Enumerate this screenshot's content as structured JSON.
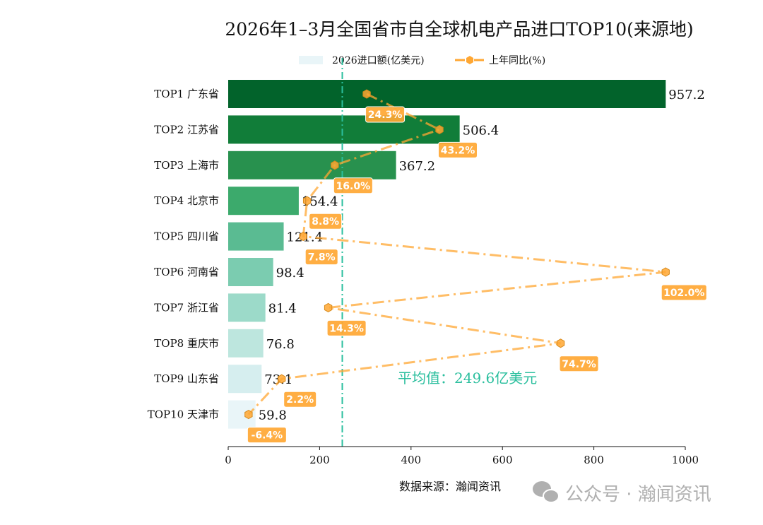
{
  "chart_data": {
    "type": "bar",
    "orientation": "horizontal",
    "title": "2026年1–3月全国省市自全球机电产品进口TOP10(来源地)",
    "categories": [
      "TOP1 广东省",
      "TOP2 江苏省",
      "TOP3 上海市",
      "TOP4 北京市",
      "TOP5 四川省",
      "TOP6 河南省",
      "TOP7 浙江省",
      "TOP8 重庆市",
      "TOP9 山东省",
      "TOP10 天津市"
    ],
    "series": [
      {
        "name": "2026进口额(亿美元)",
        "type": "bar",
        "values": [
          957.2,
          506.4,
          367.2,
          154.4,
          121.4,
          98.4,
          81.4,
          76.8,
          73.1,
          59.8
        ],
        "value_labels": [
          "957.2",
          "506.4",
          "367.2",
          "154.4",
          "121.4",
          "98.4",
          "81.4",
          "76.8",
          "73.1",
          "59.8"
        ],
        "colors": [
          "#02632b",
          "#117d39",
          "#28914e",
          "#3caa6c",
          "#5abb92",
          "#7bccb0",
          "#9cdac9",
          "#bde6de",
          "#d6eeef",
          "#e9f5f8"
        ]
      },
      {
        "name": "上年同比(%)",
        "type": "line",
        "values": [
          24.3,
          43.2,
          16.0,
          8.8,
          7.8,
          102.0,
          14.3,
          74.7,
          2.2,
          -6.4
        ],
        "value_labels": [
          "24.3%",
          "43.2%",
          "16.0%",
          "8.8%",
          "7.8%",
          "102.0%",
          "14.3%",
          "74.7%",
          "2.2%",
          "-6.4%"
        ],
        "color": "#ffa733",
        "xlim": [
          -11.7,
          107.1
        ]
      }
    ],
    "xlim": [
      0,
      1000
    ],
    "xticks": [
      "0",
      "200",
      "400",
      "600",
      "800",
      "1000"
    ],
    "average": {
      "value": 249.6,
      "label": "平均值：249.6亿美元",
      "color": "#2bbf9e"
    },
    "legend": "top-center",
    "grid": false,
    "source": "数据来源：瀚闻资讯"
  },
  "watermark": "公众号 · 瀚闻资讯"
}
